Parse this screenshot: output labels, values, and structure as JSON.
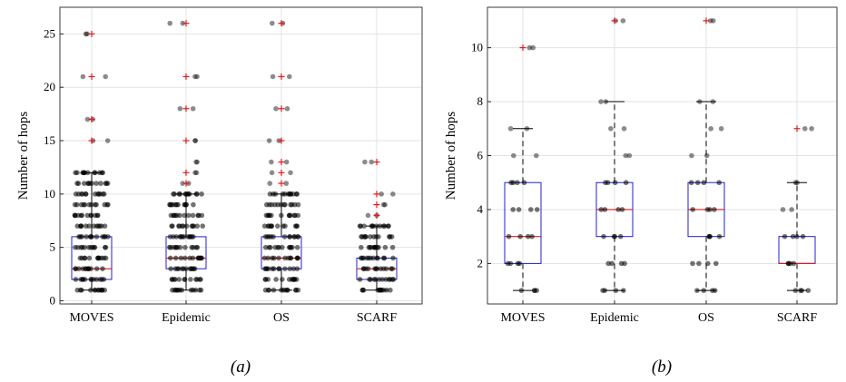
{
  "chart_data": [
    {
      "type": "box",
      "panel_label": "(a)",
      "ylabel": "Number of hops",
      "xlabel": "",
      "ylim": [
        -0.3,
        27.5
      ],
      "yticks": [
        0,
        5,
        10,
        15,
        20,
        25
      ],
      "grid": true,
      "categories": [
        "MOVES",
        "Epidemic",
        "OS",
        "SCARF"
      ],
      "boxes": [
        {
          "q1": 2,
          "median": 3,
          "q3": 6,
          "whisker_low": 1,
          "whisker_high": 12,
          "outliers": [
            15,
            17,
            21,
            25
          ]
        },
        {
          "q1": 3,
          "median": 4,
          "q3": 6,
          "whisker_low": 1,
          "whisker_high": 10,
          "outliers": [
            11,
            12,
            15,
            18,
            21,
            26
          ]
        },
        {
          "q1": 3,
          "median": 4,
          "q3": 6,
          "whisker_low": 1,
          "whisker_high": 10,
          "outliers": [
            11,
            12,
            13,
            15,
            18,
            21,
            26
          ]
        },
        {
          "q1": 2,
          "median": 3,
          "q3": 4,
          "whisker_low": 1,
          "whisker_high": 7,
          "outliers": [
            8,
            9,
            10,
            13
          ]
        }
      ],
      "points": [
        [
          1,
          2,
          3,
          4,
          5,
          6,
          7,
          8,
          9,
          10,
          11,
          12,
          15,
          17,
          21,
          25
        ],
        [
          1,
          2,
          3,
          4,
          5,
          6,
          7,
          8,
          9,
          10,
          11,
          12,
          13,
          15,
          18,
          21,
          26
        ],
        [
          1,
          2,
          3,
          4,
          5,
          6,
          7,
          8,
          9,
          10,
          11,
          12,
          13,
          15,
          18,
          21,
          26
        ],
        [
          1,
          2,
          3,
          4,
          5,
          6,
          7,
          8,
          9,
          10,
          13
        ]
      ]
    },
    {
      "type": "box",
      "panel_label": "(b)",
      "ylabel": "Number of hops",
      "xlabel": "",
      "ylim": [
        0.5,
        11.5
      ],
      "yticks": [
        2,
        4,
        6,
        8,
        10
      ],
      "grid": true,
      "categories": [
        "MOVES",
        "Epidemic",
        "OS",
        "SCARF"
      ],
      "boxes": [
        {
          "q1": 2,
          "median": 3,
          "q3": 5,
          "whisker_low": 1,
          "whisker_high": 7,
          "outliers": [
            10
          ]
        },
        {
          "q1": 3,
          "median": 4,
          "q3": 5,
          "whisker_low": 1,
          "whisker_high": 8,
          "outliers": [
            11
          ]
        },
        {
          "q1": 3,
          "median": 4,
          "q3": 5,
          "whisker_low": 1,
          "whisker_high": 8,
          "outliers": [
            11
          ]
        },
        {
          "q1": 2,
          "median": 2,
          "q3": 3,
          "whisker_low": 1,
          "whisker_high": 5,
          "outliers": [
            7
          ]
        }
      ],
      "points": [
        [
          1,
          2,
          3,
          4,
          5,
          6,
          7,
          10
        ],
        [
          1,
          2,
          3,
          4,
          5,
          6,
          7,
          8,
          11
        ],
        [
          1,
          2,
          3,
          4,
          5,
          6,
          7,
          8,
          11
        ],
        [
          1,
          2,
          3,
          4,
          5,
          7
        ]
      ]
    }
  ]
}
